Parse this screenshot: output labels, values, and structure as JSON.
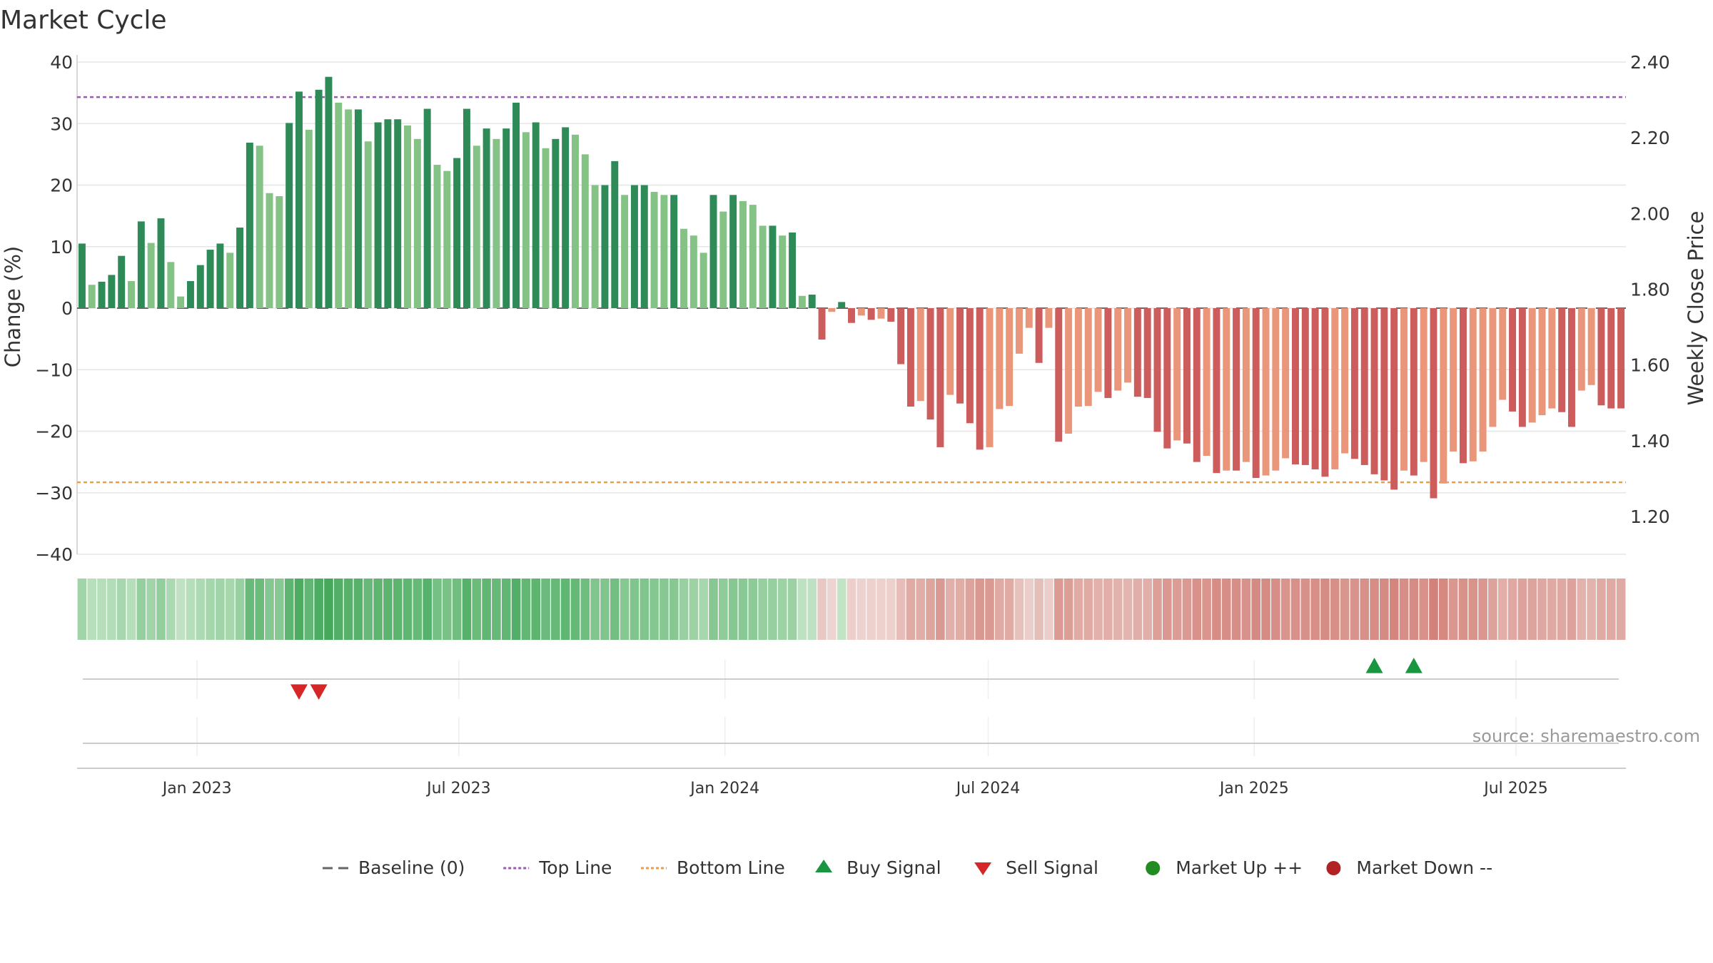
{
  "chart_data": {
    "type": "bar",
    "title": "Market Cycle",
    "ylabel": "Change (%)",
    "y2label": "Weekly Close Price",
    "ylim": [
      -40,
      40
    ],
    "y2lim": [
      1.1,
      2.4
    ],
    "yticks": [
      "40",
      "30",
      "20",
      "10",
      "0",
      "−10",
      "−20",
      "−30",
      "−40"
    ],
    "y2ticks": [
      "2.40",
      "2.20",
      "2.00",
      "1.80",
      "1.60",
      "1.40",
      "1.20"
    ],
    "xticks": [
      "Jan 2023",
      "Jul 2023",
      "Jan 2024",
      "Jul 2024",
      "Jan 2025",
      "Jul 2025"
    ],
    "x_start": "2022-10-10",
    "x_end": "2025-09-15",
    "top_line": 34.3,
    "bottom_line": -28.3,
    "colors": {
      "up_strong": "#2e8b57",
      "up_weak": "#85c285",
      "down_strong": "#cd5c5c",
      "down_weak": "#e9967a",
      "top_line": "#9b59b6",
      "bottom_line": "#e89e4f",
      "baseline": "#666666",
      "buy": "#1a9641",
      "sell": "#d62728",
      "market_up": "#228b22",
      "market_down": "#b22222"
    },
    "weekly_change": [
      10.5,
      3.8,
      4.3,
      5.4,
      8.5,
      4.4,
      14.1,
      10.6,
      14.6,
      7.5,
      1.9,
      4.4,
      7.0,
      9.5,
      10.5,
      9.0,
      13.1,
      26.9,
      26.4,
      18.7,
      18.2,
      30.1,
      35.2,
      29.0,
      35.5,
      37.6,
      33.4,
      32.3,
      32.3,
      27.1,
      30.2,
      30.7,
      30.7,
      29.7,
      27.5,
      32.4,
      23.3,
      22.3,
      24.4,
      32.4,
      26.4,
      29.2,
      27.5,
      29.2,
      33.4,
      28.6,
      30.2,
      26.0,
      27.5,
      29.4,
      28.2,
      25.0,
      20.0,
      20.0,
      23.9,
      18.4,
      20.0,
      20.0,
      18.9,
      18.4,
      18.4,
      12.9,
      11.8,
      9.0,
      18.4,
      15.7,
      18.4,
      17.4,
      16.8,
      13.4,
      13.4,
      11.8,
      12.3,
      2.0,
      2.2,
      -5.1,
      -0.6,
      1.0,
      -2.4,
      -1.2,
      -1.9,
      -1.7,
      -2.2,
      -9.1,
      -16.0,
      -15.1,
      -18.1,
      -22.6,
      -14.1,
      -15.5,
      -18.7,
      -23.0,
      -22.6,
      -16.4,
      -15.9,
      -7.4,
      -3.2,
      -8.9,
      -3.2,
      -21.7,
      -20.4,
      -16.0,
      -15.9,
      -13.6,
      -14.6,
      -13.4,
      -12.1,
      -14.4,
      -14.6,
      -20.1,
      -22.8,
      -21.5,
      -22.0,
      -25.0,
      -24.0,
      -26.8,
      -26.4,
      -26.4,
      -25.0,
      -27.6,
      -27.2,
      -26.4,
      -24.4,
      -25.4,
      -25.5,
      -26.2,
      -27.4,
      -26.2,
      -23.6,
      -24.5,
      -25.5,
      -27.0,
      -28.0,
      -29.5,
      -26.4,
      -27.2,
      -25.0,
      -30.9,
      -28.5,
      -23.3,
      -25.2,
      -24.9,
      -23.3,
      -19.3,
      -14.9,
      -16.8,
      -19.3,
      -18.6,
      -17.4,
      -16.3,
      -16.9,
      -19.3,
      -13.4,
      -12.5,
      -15.8,
      -16.3,
      -16.3
    ],
    "signals": {
      "sell_dates": [
        "2023-03-13",
        "2023-03-27"
      ],
      "buy_dates": [
        "2025-04-14",
        "2025-05-12"
      ]
    },
    "source": "source: sharemaestro.com",
    "legend": [
      {
        "key": "baseline",
        "label": "Baseline (0)",
        "symbol": "dash",
        "color": "#666666"
      },
      {
        "key": "top",
        "label": "Top Line",
        "symbol": "dot",
        "color": "#9b59b6"
      },
      {
        "key": "bottom",
        "label": "Bottom Line",
        "symbol": "dot",
        "color": "#e89e4f"
      },
      {
        "key": "buy",
        "label": "Buy Signal",
        "symbol": "tri-up",
        "color": "#1a9641"
      },
      {
        "key": "sell",
        "label": "Sell Signal",
        "symbol": "tri-down",
        "color": "#d62728"
      },
      {
        "key": "up",
        "label": "Market Up ++",
        "symbol": "circle",
        "color": "#228b22"
      },
      {
        "key": "down",
        "label": "Market Down --",
        "symbol": "circle",
        "color": "#b22222"
      }
    ]
  }
}
